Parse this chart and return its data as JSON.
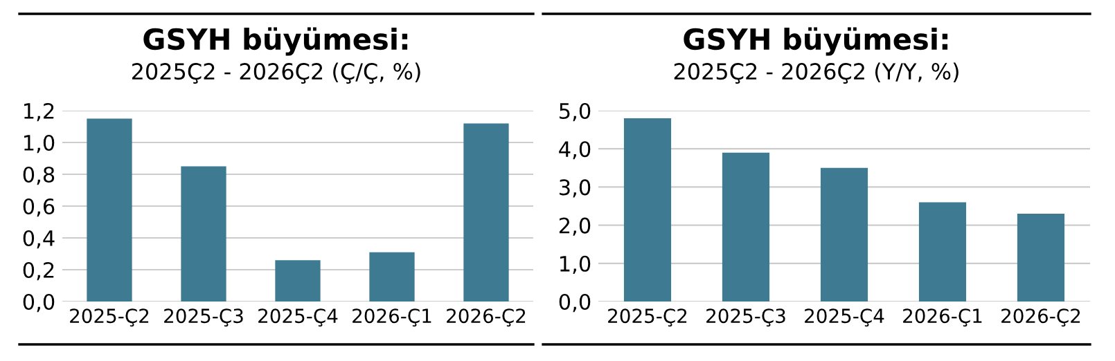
{
  "chart_data": [
    {
      "type": "bar",
      "title": "GSYH büyümesi:",
      "subtitle": "2025Ç2 - 2026Ç2 (Ç/Ç, %)",
      "categories": [
        "2025-Ç2",
        "2025-Ç3",
        "2025-Ç4",
        "2026-Ç1",
        "2026-Ç2"
      ],
      "values": [
        1.15,
        0.85,
        0.26,
        0.31,
        1.12
      ],
      "color": "#3f7a93",
      "ylim": [
        0,
        1.2
      ],
      "yticks": [
        {
          "value": 0,
          "label": "0,0"
        },
        {
          "value": 0.2,
          "label": "0,2"
        },
        {
          "value": 0.4,
          "label": "0,4"
        },
        {
          "value": 0.6,
          "label": "0,6"
        },
        {
          "value": 0.8,
          "label": "0,8"
        },
        {
          "value": 1.0,
          "label": "1,0"
        },
        {
          "value": 1.2,
          "label": "1,2"
        }
      ],
      "grid": "y",
      "legend": false
    },
    {
      "type": "bar",
      "title": "GSYH büyümesi:",
      "subtitle": "2025Ç2 - 2026Ç2 (Y/Y, %)",
      "categories": [
        "2025-Ç2",
        "2025-Ç3",
        "2025-Ç4",
        "2026-Ç1",
        "2026-Ç2"
      ],
      "values": [
        4.8,
        3.9,
        3.5,
        2.6,
        2.3
      ],
      "color": "#3f7a93",
      "ylim": [
        0,
        5
      ],
      "yticks": [
        {
          "value": 0,
          "label": "0,0"
        },
        {
          "value": 1,
          "label": "1,0"
        },
        {
          "value": 2,
          "label": "2,0"
        },
        {
          "value": 3,
          "label": "3,0"
        },
        {
          "value": 4,
          "label": "4,0"
        },
        {
          "value": 5,
          "label": "5,0"
        }
      ],
      "grid": "y",
      "legend": false
    }
  ]
}
